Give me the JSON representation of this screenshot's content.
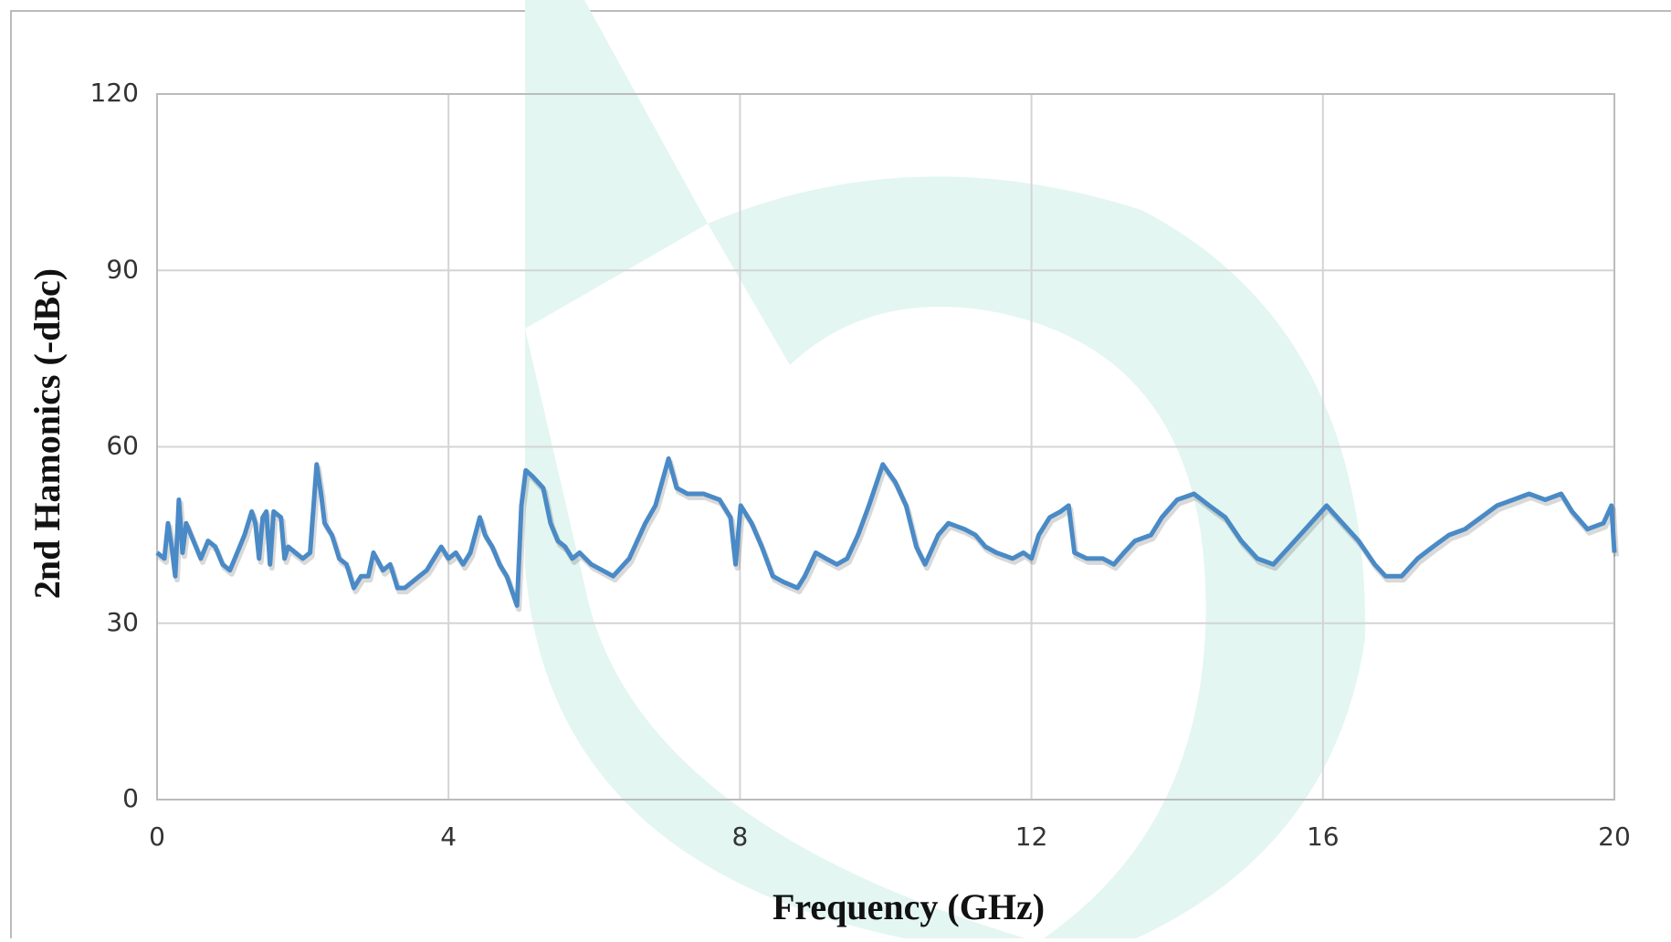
{
  "chart_data": {
    "type": "line",
    "x_label": "Frequency (GHz)",
    "y_label": "2nd Hamonics (-dBc)",
    "xlim": [
      0,
      20
    ],
    "xticks": [
      0,
      4,
      8,
      12,
      16,
      20
    ],
    "ylim": [
      0,
      120
    ],
    "yticks": [
      0,
      30,
      60,
      90,
      120
    ],
    "grid": true,
    "x": [
      0,
      0.1,
      0.15,
      0.2,
      0.25,
      0.3,
      0.35,
      0.4,
      0.5,
      0.6,
      0.7,
      0.8,
      0.9,
      1.0,
      1.1,
      1.2,
      1.3,
      1.35,
      1.4,
      1.45,
      1.5,
      1.55,
      1.6,
      1.7,
      1.75,
      1.8,
      1.9,
      2.0,
      2.1,
      2.19,
      2.25,
      2.3,
      2.4,
      2.5,
      2.6,
      2.7,
      2.8,
      2.9,
      2.97,
      3.1,
      3.2,
      3.3,
      3.4,
      3.5,
      3.6,
      3.7,
      3.8,
      3.9,
      4.0,
      4.1,
      4.2,
      4.3,
      4.43,
      4.5,
      4.6,
      4.7,
      4.8,
      4.94,
      5.0,
      5.06,
      5.15,
      5.3,
      5.4,
      5.5,
      5.6,
      5.7,
      5.8,
      5.96,
      6.26,
      6.48,
      6.7,
      6.84,
      7.02,
      7.13,
      7.28,
      7.5,
      7.72,
      7.87,
      7.94,
      8.01,
      8.16,
      8.3,
      8.45,
      8.6,
      8.79,
      8.89,
      9.04,
      9.18,
      9.33,
      9.47,
      9.62,
      9.77,
      9.96,
      10.13,
      10.28,
      10.42,
      10.54,
      10.72,
      10.86,
      11.08,
      11.23,
      11.37,
      11.52,
      11.74,
      11.89,
      12.0,
      12.1,
      12.25,
      12.4,
      12.51,
      12.59,
      12.76,
      12.98,
      13.13,
      13.27,
      13.42,
      13.64,
      13.79,
      14.0,
      14.23,
      14.44,
      14.66,
      14.88,
      15.1,
      15.32,
      15.54,
      15.76,
      16.05,
      16.27,
      16.49,
      16.71,
      16.86,
      17.08,
      17.3,
      17.51,
      17.73,
      17.95,
      18.17,
      18.39,
      18.61,
      18.83,
      19.05,
      19.27,
      19.42,
      19.63,
      19.85,
      19.96,
      20
    ],
    "series": [
      {
        "name": "2nd Harmonics",
        "color": "#4a8ac6",
        "values": [
          42,
          41,
          47,
          43,
          38,
          51,
          42,
          47,
          44,
          41,
          44,
          43,
          40,
          39,
          42,
          45,
          49,
          47,
          41,
          48,
          49,
          40,
          49,
          48,
          41,
          43,
          42,
          41,
          42,
          57,
          52,
          47,
          45,
          41,
          40,
          36,
          38,
          38,
          42,
          39,
          40,
          36,
          36,
          37,
          38,
          39,
          41,
          43,
          41,
          42,
          40,
          42,
          48,
          45,
          43,
          40,
          38,
          33,
          50,
          56,
          55,
          53,
          47,
          44,
          43,
          41,
          42,
          40,
          38,
          41,
          47,
          50,
          58,
          53,
          52,
          52,
          51,
          48,
          40,
          50,
          47,
          43,
          38,
          37,
          36,
          38,
          42,
          41,
          40,
          41,
          45,
          50,
          57,
          54,
          50,
          43,
          40,
          45,
          47,
          46,
          45,
          43,
          42,
          41,
          42,
          41,
          45,
          48,
          49,
          50,
          42,
          41,
          41,
          40,
          42,
          44,
          45,
          48,
          51,
          52,
          50,
          48,
          44,
          41,
          40,
          43,
          46,
          50,
          47,
          44,
          40,
          38,
          38,
          41,
          43,
          45,
          46,
          48,
          50,
          51,
          52,
          51,
          52,
          49,
          46,
          47,
          50,
          42
        ]
      }
    ]
  }
}
